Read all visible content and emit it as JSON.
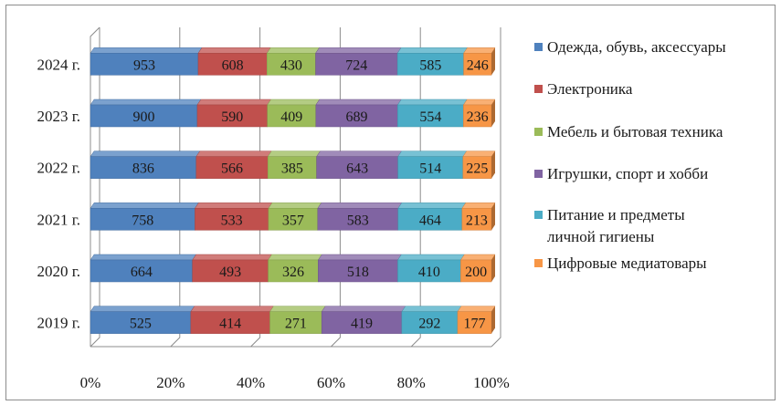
{
  "chart_data": {
    "type": "bar",
    "orientation": "horizontal",
    "stacked": "percent",
    "style": "3d",
    "categories": [
      "2019 г.",
      "2020 г.",
      "2021 г.",
      "2022 г.",
      "2023 г.",
      "2024 г."
    ],
    "series": [
      {
        "name": "Одежда, обувь, аксессуары",
        "color": "#4f81bd",
        "values": [
          525,
          664,
          758,
          836,
          900,
          953
        ]
      },
      {
        "name": "Электроника",
        "color": "#c0504d",
        "values": [
          414,
          493,
          533,
          566,
          590,
          608
        ]
      },
      {
        "name": "Мебель и бытовая техника",
        "color": "#9bbb59",
        "values": [
          271,
          326,
          357,
          385,
          409,
          430
        ]
      },
      {
        "name": "Игрушки, спорт и хобби",
        "color": "#8064a2",
        "values": [
          419,
          518,
          583,
          643,
          689,
          724
        ]
      },
      {
        "name": "Питание и предметы личной гигиены",
        "color": "#4bacc6",
        "values": [
          292,
          410,
          464,
          514,
          554,
          585
        ]
      },
      {
        "name": "Цифровые медиатовары",
        "color": "#f79646",
        "values": [
          177,
          200,
          213,
          225,
          236,
          246
        ]
      }
    ],
    "x_ticks": [
      "0%",
      "20%",
      "40%",
      "60%",
      "80%",
      "100%"
    ],
    "xlim": [
      0,
      100
    ],
    "grid": true,
    "legend_position": "right",
    "title": "",
    "xlabel": "",
    "ylabel": ""
  }
}
